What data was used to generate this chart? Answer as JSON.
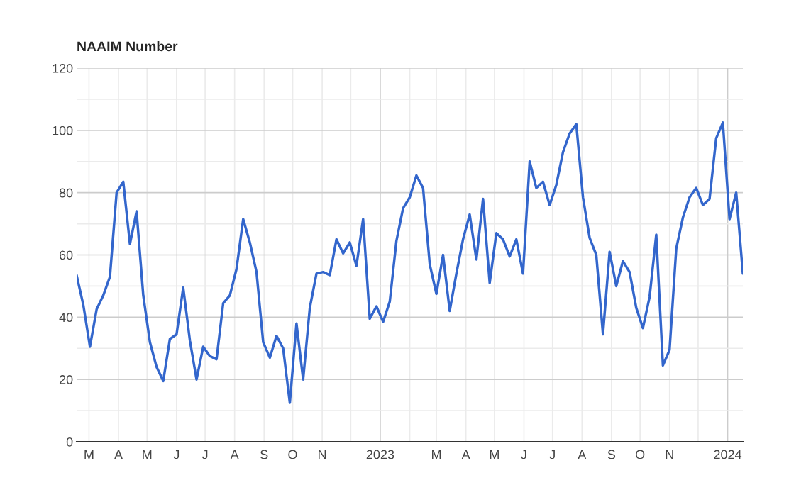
{
  "chart_data": {
    "type": "line",
    "title": "NAAIM Number",
    "x": [
      "2022-02-16",
      "2022-02-23",
      "2022-03-02",
      "2022-03-09",
      "2022-03-16",
      "2022-03-23",
      "2022-03-30",
      "2022-04-06",
      "2022-04-13",
      "2022-04-20",
      "2022-04-27",
      "2022-05-04",
      "2022-05-11",
      "2022-05-18",
      "2022-05-25",
      "2022-06-01",
      "2022-06-08",
      "2022-06-15",
      "2022-06-22",
      "2022-06-29",
      "2022-07-06",
      "2022-07-13",
      "2022-07-20",
      "2022-07-27",
      "2022-08-03",
      "2022-08-10",
      "2022-08-17",
      "2022-08-24",
      "2022-08-31",
      "2022-09-07",
      "2022-09-14",
      "2022-09-21",
      "2022-09-28",
      "2022-10-05",
      "2022-10-12",
      "2022-10-19",
      "2022-10-26",
      "2022-11-02",
      "2022-11-09",
      "2022-11-16",
      "2022-11-23",
      "2022-11-30",
      "2022-12-07",
      "2022-12-14",
      "2022-12-21",
      "2022-12-28",
      "2023-01-04",
      "2023-01-11",
      "2023-01-18",
      "2023-01-25",
      "2023-02-01",
      "2023-02-08",
      "2023-02-15",
      "2023-02-22",
      "2023-03-01",
      "2023-03-08",
      "2023-03-15",
      "2023-03-22",
      "2023-03-29",
      "2023-04-05",
      "2023-04-12",
      "2023-04-19",
      "2023-04-26",
      "2023-05-03",
      "2023-05-10",
      "2023-05-17",
      "2023-05-24",
      "2023-05-31",
      "2023-06-07",
      "2023-06-14",
      "2023-06-21",
      "2023-06-28",
      "2023-07-05",
      "2023-07-12",
      "2023-07-19",
      "2023-07-26",
      "2023-08-02",
      "2023-08-09",
      "2023-08-16",
      "2023-08-23",
      "2023-08-30",
      "2023-09-06",
      "2023-09-13",
      "2023-09-20",
      "2023-09-27",
      "2023-10-04",
      "2023-10-11",
      "2023-10-18",
      "2023-10-25",
      "2023-11-01",
      "2023-11-08",
      "2023-11-15",
      "2023-11-22",
      "2023-11-29",
      "2023-12-06",
      "2023-12-13",
      "2023-12-20",
      "2023-12-27",
      "2024-01-03",
      "2024-01-10",
      "2024-01-17"
    ],
    "series": [
      {
        "color": "#3366cc",
        "values": [
          53.5,
          44,
          30.5,
          42.5,
          47,
          53,
          80,
          83.5,
          63.5,
          74,
          47,
          32,
          24,
          19.5,
          33,
          34.5,
          49.5,
          32.5,
          20,
          30.5,
          27.5,
          26.5,
          44.5,
          47,
          55.5,
          71.5,
          64,
          54.5,
          32,
          27,
          34,
          30,
          12.5,
          38,
          20,
          43,
          54,
          54.5,
          53.5,
          65,
          60.5,
          64,
          56.5,
          71.5,
          39.5,
          43.5,
          38.5,
          45,
          64.5,
          75,
          78.5,
          85.5,
          81.5,
          57,
          47.5,
          60,
          42,
          54,
          65,
          73,
          58.5,
          78,
          51,
          67,
          65,
          59.5,
          65,
          54,
          90,
          81.5,
          83.5,
          76,
          82.5,
          93,
          99,
          102,
          78.5,
          65.5,
          60,
          34.5,
          61,
          50,
          58,
          54.5,
          43,
          36.5,
          46.5,
          66.5,
          24.5,
          29.5,
          62,
          72,
          78.5,
          81.5,
          76,
          78,
          97.5,
          102.5,
          71.5,
          80,
          54
        ]
      }
    ],
    "xlim": [
      "2022-02-16",
      "2024-01-17"
    ],
    "xticks": [
      {
        "value": "2022-03-01",
        "label": "M"
      },
      {
        "value": "2022-04-01",
        "label": "A"
      },
      {
        "value": "2022-05-01",
        "label": "M"
      },
      {
        "value": "2022-06-01",
        "label": "J"
      },
      {
        "value": "2022-07-01",
        "label": "J"
      },
      {
        "value": "2022-08-01",
        "label": "A"
      },
      {
        "value": "2022-09-01",
        "label": "S"
      },
      {
        "value": "2022-10-01",
        "label": "O"
      },
      {
        "value": "2022-11-01",
        "label": "N"
      },
      {
        "value": "2022-12-01",
        "label": null
      },
      {
        "value": "2023-01-01",
        "label": "2023"
      },
      {
        "value": "2023-02-01",
        "label": null
      },
      {
        "value": "2023-03-01",
        "label": "M"
      },
      {
        "value": "2023-04-01",
        "label": "A"
      },
      {
        "value": "2023-05-01",
        "label": "M"
      },
      {
        "value": "2023-06-01",
        "label": "J"
      },
      {
        "value": "2023-07-01",
        "label": "J"
      },
      {
        "value": "2023-08-01",
        "label": "A"
      },
      {
        "value": "2023-09-01",
        "label": "S"
      },
      {
        "value": "2023-10-01",
        "label": "O"
      },
      {
        "value": "2023-11-01",
        "label": "N"
      },
      {
        "value": "2023-12-01",
        "label": null
      },
      {
        "value": "2024-01-01",
        "label": "2024"
      }
    ],
    "ylim": [
      0,
      120
    ],
    "yticks": [
      0,
      {
        "value": 10,
        "label": null
      },
      20,
      {
        "value": 30,
        "label": null
      },
      40,
      {
        "value": 50,
        "label": null
      },
      60,
      {
        "value": 70,
        "label": null
      },
      80,
      {
        "value": 90,
        "label": null
      },
      100,
      {
        "value": 110,
        "label": null
      },
      120
    ],
    "grid": true,
    "marker": "none",
    "line_style": "solid"
  }
}
